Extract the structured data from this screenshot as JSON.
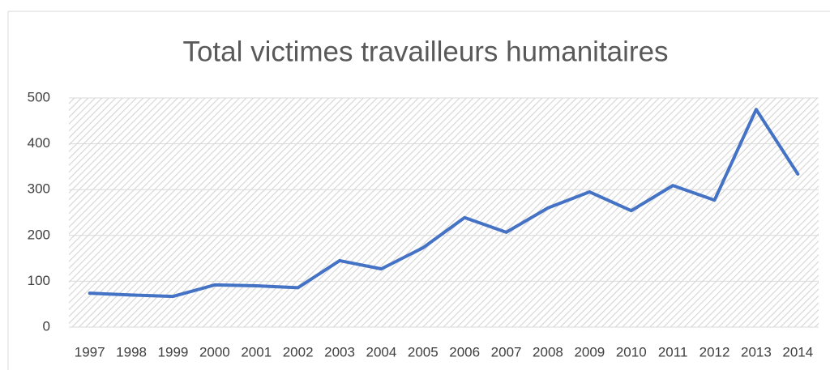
{
  "chart_data": {
    "type": "line",
    "title": "Total victimes travailleurs humanitaires",
    "categories": [
      "1997",
      "1998",
      "1999",
      "2000",
      "2001",
      "2002",
      "2003",
      "2004",
      "2005",
      "2006",
      "2007",
      "2008",
      "2009",
      "2010",
      "2011",
      "2012",
      "2013",
      "2014"
    ],
    "series": [
      {
        "name": "Total victimes",
        "color": "#4472c4",
        "values": [
          74,
          70,
          67,
          92,
          90,
          86,
          145,
          127,
          173,
          239,
          207,
          260,
          295,
          254,
          309,
          277,
          475,
          334
        ]
      }
    ],
    "ylim": [
      0,
      500
    ],
    "yticks": [
      0,
      100,
      200,
      300,
      400,
      500
    ],
    "grid": true
  }
}
